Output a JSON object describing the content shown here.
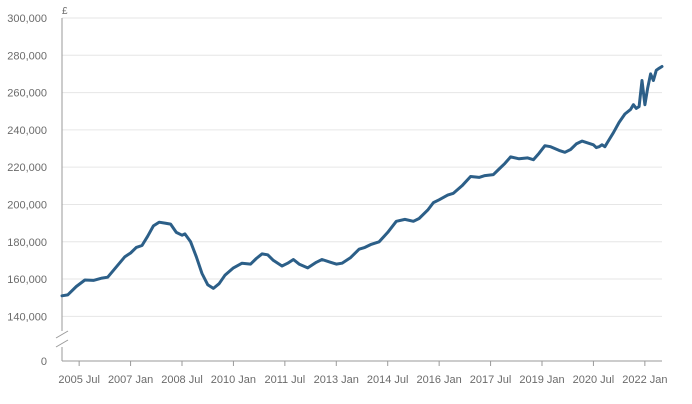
{
  "chart_data": {
    "type": "line",
    "title": "",
    "xlabel": "",
    "ylabel": "£",
    "ylim": [
      0,
      300000
    ],
    "y_axis_break": [
      0,
      130000
    ],
    "grid": true,
    "legend": "none",
    "colors": {
      "line": "#2c5f88",
      "grid": "#e6e6e6",
      "axis": "#9a9a9a",
      "text": "#6b6b6b"
    },
    "y_ticks": [
      {
        "value": 0,
        "label": "0"
      },
      {
        "value": 140000,
        "label": "140,000"
      },
      {
        "value": 160000,
        "label": "160,000"
      },
      {
        "value": 180000,
        "label": "180,000"
      },
      {
        "value": 200000,
        "label": "200,000"
      },
      {
        "value": 220000,
        "label": "220,000"
      },
      {
        "value": 240000,
        "label": "240,000"
      },
      {
        "value": 260000,
        "label": "260,000"
      },
      {
        "value": 280000,
        "label": "280,000"
      },
      {
        "value": 300000,
        "label": "300,000"
      }
    ],
    "x_ticks": [
      {
        "date": "2005-07",
        "label": "2005 Jul"
      },
      {
        "date": "2007-01",
        "label": "2007 Jan"
      },
      {
        "date": "2008-07",
        "label": "2008 Jul"
      },
      {
        "date": "2010-01",
        "label": "2010 Jan"
      },
      {
        "date": "2011-07",
        "label": "2011 Jul"
      },
      {
        "date": "2013-01",
        "label": "2013 Jan"
      },
      {
        "date": "2014-07",
        "label": "2014 Jul"
      },
      {
        "date": "2016-01",
        "label": "2016 Jan"
      },
      {
        "date": "2017-07",
        "label": "2017 Jul"
      },
      {
        "date": "2019-01",
        "label": "2019 Jan"
      },
      {
        "date": "2020-07",
        "label": "2020 Jul"
      },
      {
        "date": "2022-01",
        "label": "2022 Jan"
      }
    ],
    "series": [
      {
        "points": [
          [
            "2005-01",
            151000
          ],
          [
            "2005-03",
            151500
          ],
          [
            "2005-06",
            156000
          ],
          [
            "2005-09",
            159500
          ],
          [
            "2005-12",
            159300
          ],
          [
            "2006-03",
            160500
          ],
          [
            "2006-05",
            161000
          ],
          [
            "2006-08",
            166500
          ],
          [
            "2006-11",
            172000
          ],
          [
            "2007-01",
            174000
          ],
          [
            "2007-03",
            177000
          ],
          [
            "2007-05",
            178000
          ],
          [
            "2007-07",
            183000
          ],
          [
            "2007-09",
            188500
          ],
          [
            "2007-11",
            190500
          ],
          [
            "2008-01",
            190000
          ],
          [
            "2008-03",
            189500
          ],
          [
            "2008-05",
            185000
          ],
          [
            "2008-07",
            183500
          ],
          [
            "2008-08",
            184200
          ],
          [
            "2008-10",
            180000
          ],
          [
            "2008-12",
            172000
          ],
          [
            "2009-02",
            163000
          ],
          [
            "2009-04",
            157000
          ],
          [
            "2009-06",
            155000
          ],
          [
            "2009-08",
            157500
          ],
          [
            "2009-10",
            162000
          ],
          [
            "2010-01",
            166000
          ],
          [
            "2010-04",
            168500
          ],
          [
            "2010-07",
            168000
          ],
          [
            "2010-09",
            171000
          ],
          [
            "2010-11",
            173500
          ],
          [
            "2011-01",
            173000
          ],
          [
            "2011-03",
            170000
          ],
          [
            "2011-06",
            167000
          ],
          [
            "2011-08",
            168500
          ],
          [
            "2011-10",
            170500
          ],
          [
            "2011-12",
            168000
          ],
          [
            "2012-03",
            166000
          ],
          [
            "2012-06",
            169000
          ],
          [
            "2012-08",
            170500
          ],
          [
            "2012-11",
            169000
          ],
          [
            "2013-01",
            168000
          ],
          [
            "2013-03",
            168500
          ],
          [
            "2013-06",
            171500
          ],
          [
            "2013-09",
            176000
          ],
          [
            "2013-11",
            177000
          ],
          [
            "2014-01",
            178500
          ],
          [
            "2014-04",
            180000
          ],
          [
            "2014-07",
            185000
          ],
          [
            "2014-10",
            191000
          ],
          [
            "2015-01",
            192000
          ],
          [
            "2015-04",
            191000
          ],
          [
            "2015-06",
            192500
          ],
          [
            "2015-09",
            197000
          ],
          [
            "2015-11",
            201000
          ],
          [
            "2016-01",
            202500
          ],
          [
            "2016-04",
            205000
          ],
          [
            "2016-06",
            206000
          ],
          [
            "2016-09",
            210000
          ],
          [
            "2016-12",
            215000
          ],
          [
            "2017-03",
            214500
          ],
          [
            "2017-05",
            215500
          ],
          [
            "2017-08",
            216000
          ],
          [
            "2017-10",
            219000
          ],
          [
            "2017-12",
            222000
          ],
          [
            "2018-02",
            225500
          ],
          [
            "2018-05",
            224500
          ],
          [
            "2018-08",
            225000
          ],
          [
            "2018-10",
            224000
          ],
          [
            "2018-12",
            227500
          ],
          [
            "2019-02",
            231500
          ],
          [
            "2019-04",
            231000
          ],
          [
            "2019-07",
            229000
          ],
          [
            "2019-09",
            228000
          ],
          [
            "2019-11",
            229500
          ],
          [
            "2020-01",
            232500
          ],
          [
            "2020-03",
            234000
          ],
          [
            "2020-05",
            233000
          ],
          [
            "2020-07",
            232000
          ],
          [
            "2020-08",
            230500
          ],
          [
            "2020-09",
            231000
          ],
          [
            "2020-10",
            232000
          ],
          [
            "2020-11",
            231000
          ],
          [
            "2020-12",
            233500
          ],
          [
            "2021-02",
            238500
          ],
          [
            "2021-04",
            244000
          ],
          [
            "2021-06",
            248500
          ],
          [
            "2021-08",
            251000
          ],
          [
            "2021-09",
            253500
          ],
          [
            "2021-10",
            251500
          ],
          [
            "2021-11",
            252500
          ],
          [
            "2021-12",
            266500
          ],
          [
            "2022-01",
            253500
          ],
          [
            "2022-02",
            262500
          ],
          [
            "2022-03",
            270000
          ],
          [
            "2022-04",
            266500
          ],
          [
            "2022-05",
            272000
          ],
          [
            "2022-06",
            273000
          ],
          [
            "2022-07",
            274000
          ]
        ]
      }
    ]
  }
}
